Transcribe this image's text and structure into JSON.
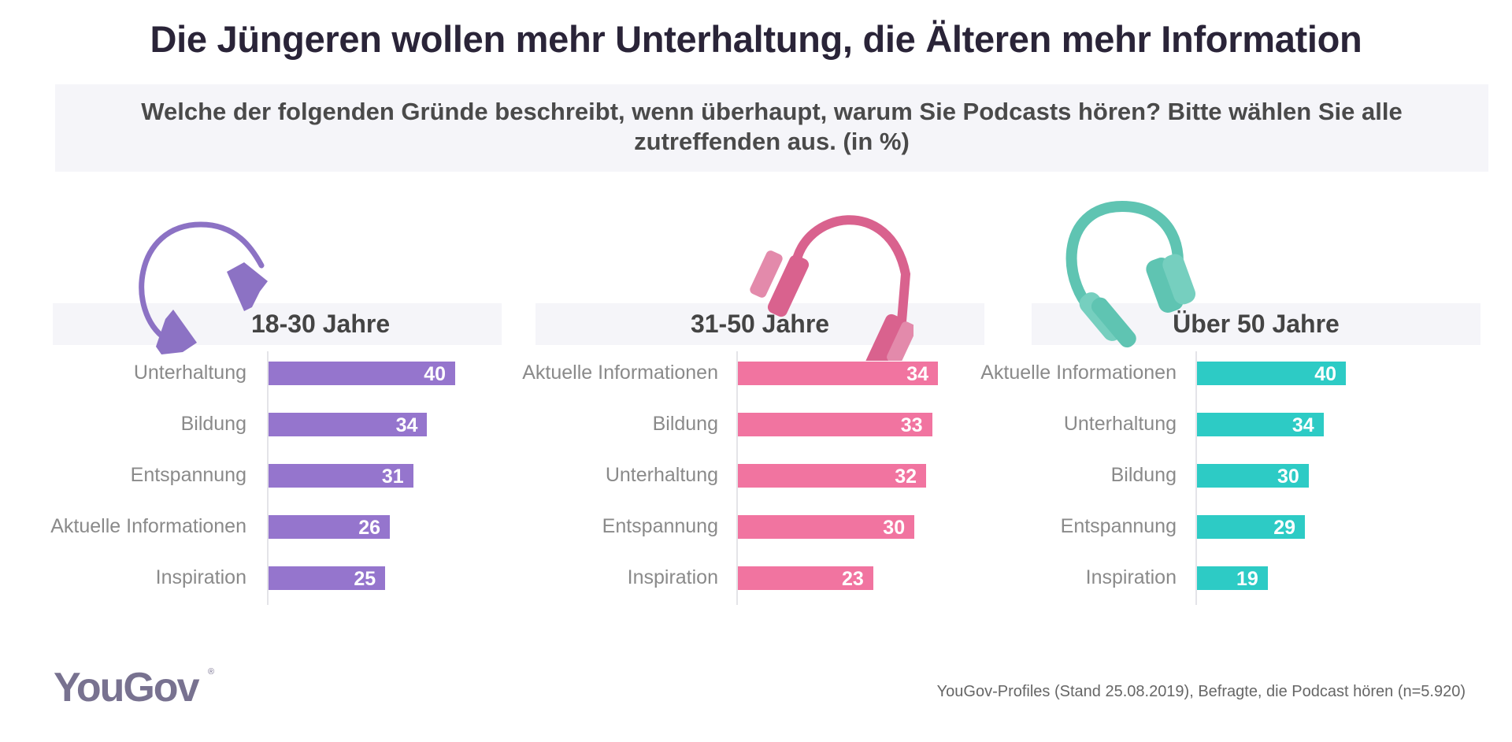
{
  "header": {
    "title": "Die Jüngeren wollen mehr Unterhaltung, die Älteren mehr Information",
    "question": "Welche der folgenden Gründe beschreibt, wenn überhaupt, warum Sie Podcasts hören? Bitte wählen Sie alle zutreffenden aus. (in %)"
  },
  "footer": {
    "logo": "YouGov",
    "logo_mark": "®",
    "source": "YouGov-Profiles (Stand 25.08.2019), Befragte, die Podcast hören (n=5.920)"
  },
  "colors": {
    "group1": "#9575cd",
    "group2": "#f174a0",
    "group3": "#2dcbc5",
    "headphones1": "#8c72c4",
    "headphones2": "#d9628e",
    "headphones3": "#5fc4b2"
  },
  "chart_data": [
    {
      "type": "bar",
      "orientation": "horizontal",
      "title": "18-30 Jahre",
      "icon": "headphones-icon",
      "categories": [
        "Unterhaltung",
        "Bildung",
        "Entspannung",
        "Aktuelle Informationen",
        "Inspiration"
      ],
      "values": [
        40,
        34,
        31,
        26,
        25
      ],
      "unit": "%",
      "xlim": [
        0,
        40
      ]
    },
    {
      "type": "bar",
      "orientation": "horizontal",
      "title": "31-50 Jahre",
      "icon": "headphones-icon",
      "categories": [
        "Aktuelle Informationen",
        "Bildung",
        "Unterhaltung",
        "Entspannung",
        "Inspiration"
      ],
      "values": [
        34,
        33,
        32,
        30,
        23
      ],
      "unit": "%",
      "xlim": [
        0,
        34
      ]
    },
    {
      "type": "bar",
      "orientation": "horizontal",
      "title": "Über 50 Jahre",
      "icon": "headphones-icon",
      "categories": [
        "Aktuelle Informationen",
        "Unterhaltung",
        "Bildung",
        "Entspannung",
        "Inspiration"
      ],
      "values": [
        40,
        34,
        30,
        29,
        19
      ],
      "unit": "%",
      "xlim": [
        0,
        40
      ]
    }
  ]
}
